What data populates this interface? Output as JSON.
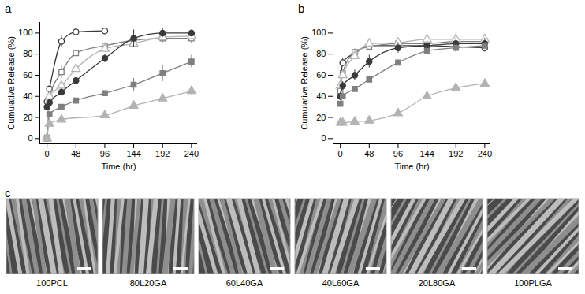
{
  "chart_data": [
    {
      "type": "line",
      "title": "a",
      "x_label": "Time (hr)",
      "y_label": "Cumulative Release (%)",
      "xlim": [
        -12,
        250
      ],
      "ylim": [
        -5,
        110
      ],
      "xticks": [
        0,
        48,
        96,
        144,
        192,
        240
      ],
      "yticks": [
        0,
        20,
        40,
        60,
        80,
        100
      ],
      "grid": false,
      "series": [
        {
          "color": "#3a3a3a",
          "marker": "open_circle",
          "x": [
            0,
            4,
            24,
            48,
            96
          ],
          "values": [
            35,
            47,
            92,
            101,
            102
          ],
          "errors": [
            2,
            2,
            5,
            1,
            1
          ]
        },
        {
          "color": "#7f7f7f",
          "marker": "open_square",
          "x": [
            0,
            4,
            24,
            48,
            96,
            144,
            192,
            240
          ],
          "values": [
            1,
            38,
            63,
            81,
            88,
            93,
            95,
            95
          ],
          "errors": [
            1,
            3,
            6,
            3,
            3,
            4,
            4,
            5
          ]
        },
        {
          "color": "#b3b3b3",
          "marker": "open_triangle",
          "x": [
            0,
            4,
            24,
            48,
            96,
            144,
            192,
            240
          ],
          "values": [
            1,
            40,
            50,
            66,
            85,
            90,
            96,
            97
          ],
          "errors": [
            1,
            3,
            3,
            3,
            3,
            4,
            3,
            3
          ]
        },
        {
          "color": "#3a3a3a",
          "marker": "filled_circle",
          "x": [
            0,
            4,
            24,
            48,
            96,
            144,
            192,
            240
          ],
          "values": [
            30,
            34,
            44,
            55,
            76,
            95,
            100,
            100
          ],
          "errors": [
            3,
            3,
            3,
            3,
            4,
            8,
            4,
            3
          ]
        },
        {
          "color": "#7f7f7f",
          "marker": "filled_square",
          "x": [
            0,
            4,
            24,
            48,
            96,
            144,
            192,
            240
          ],
          "values": [
            0,
            23,
            30,
            36,
            43,
            51,
            62,
            73
          ],
          "errors": [
            1,
            2,
            2,
            2,
            2,
            6,
            8,
            6
          ]
        },
        {
          "color": "#b3b3b3",
          "marker": "filled_triangle",
          "x": [
            0,
            4,
            24,
            96,
            144,
            192,
            240
          ],
          "values": [
            0,
            14,
            18,
            22,
            31,
            38,
            45
          ],
          "errors": [
            1,
            2,
            2,
            2,
            2,
            2,
            4
          ]
        }
      ]
    },
    {
      "type": "line",
      "title": "b",
      "x_label": "Time (hr)",
      "y_label": "Cumulative Release (%)",
      "xlim": [
        -12,
        250
      ],
      "ylim": [
        -5,
        110
      ],
      "xticks": [
        0,
        48,
        96,
        144,
        192,
        240
      ],
      "yticks": [
        0,
        20,
        40,
        60,
        80,
        100
      ],
      "grid": false,
      "series": [
        {
          "color": "#3a3a3a",
          "marker": "open_circle",
          "x": [
            0,
            4,
            24,
            48,
            96,
            144,
            192,
            240
          ],
          "values": [
            48,
            72,
            81,
            88,
            88,
            88,
            87,
            86
          ],
          "errors": [
            3,
            4,
            3,
            3,
            4,
            4,
            5,
            4
          ]
        },
        {
          "color": "#7f7f7f",
          "marker": "open_square",
          "x": [
            0,
            4,
            24,
            48,
            96,
            144,
            192,
            240
          ],
          "values": [
            45,
            62,
            82,
            87,
            90,
            90,
            92,
            92
          ],
          "errors": [
            3,
            3,
            3,
            4,
            4,
            5,
            5,
            4
          ]
        },
        {
          "color": "#b3b3b3",
          "marker": "open_triangle",
          "x": [
            0,
            4,
            24,
            48,
            96,
            144,
            192,
            240
          ],
          "values": [
            50,
            60,
            78,
            90,
            91,
            94,
            94,
            94
          ],
          "errors": [
            3,
            3,
            3,
            3,
            4,
            7,
            6,
            5
          ]
        },
        {
          "color": "#3a3a3a",
          "marker": "filled_circle",
          "x": [
            0,
            4,
            24,
            48,
            96,
            144,
            192,
            240
          ],
          "values": [
            40,
            50,
            60,
            73,
            86,
            88,
            90,
            90
          ],
          "errors": [
            4,
            4,
            5,
            6,
            5,
            5,
            5,
            5
          ]
        },
        {
          "color": "#7f7f7f",
          "marker": "filled_square",
          "x": [
            0,
            4,
            24,
            48,
            96,
            144,
            192,
            240
          ],
          "values": [
            33,
            40,
            47,
            56,
            72,
            83,
            86,
            88
          ],
          "errors": [
            2,
            2,
            2,
            2,
            2,
            3,
            3,
            3
          ]
        },
        {
          "color": "#b3b3b3",
          "marker": "filled_triangle",
          "x": [
            0,
            4,
            24,
            48,
            96,
            144,
            192,
            240
          ],
          "values": [
            15,
            15,
            16,
            17,
            24,
            40,
            48,
            52
          ],
          "errors": [
            1,
            1,
            1,
            1,
            2,
            2,
            2,
            2
          ]
        }
      ]
    }
  ],
  "panel_c": {
    "title": "c",
    "labels": [
      "100PCL",
      "80L20GA",
      "60L40GA",
      "40L60GA",
      "20L80GA",
      "100PLGA"
    ]
  }
}
